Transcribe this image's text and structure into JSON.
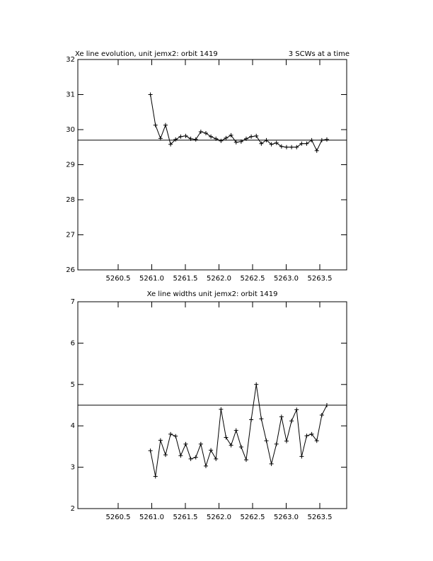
{
  "chart_data": [
    {
      "type": "line",
      "title": "Xe line evolution, unit jemx2: orbit 1419",
      "subtitle": "3 SCWs at a time",
      "x": [
        5260.98,
        5261.055,
        5261.13,
        5261.205,
        5261.28,
        5261.355,
        5261.43,
        5261.505,
        5261.58,
        5261.655,
        5261.73,
        5261.805,
        5261.88,
        5261.955,
        5262.03,
        5262.105,
        5262.18,
        5262.255,
        5262.33,
        5262.405,
        5262.48,
        5262.555,
        5262.63,
        5262.705,
        5262.78,
        5262.855,
        5262.93,
        5263.005,
        5263.08,
        5263.155,
        5263.23,
        5263.305,
        5263.38,
        5263.455,
        5263.53,
        5263.605
      ],
      "series": [
        {
          "color": "#000000",
          "values": [
            31.0,
            30.13,
            29.75,
            30.13,
            29.58,
            29.72,
            29.8,
            29.82,
            29.74,
            29.72,
            29.94,
            29.9,
            29.8,
            29.74,
            29.68,
            29.76,
            29.84,
            29.64,
            29.66,
            29.74,
            29.8,
            29.82,
            29.6,
            29.7,
            29.58,
            29.62,
            29.52,
            29.5,
            29.5,
            29.5,
            29.6,
            29.6,
            29.7,
            29.4,
            29.7,
            29.72
          ]
        }
      ],
      "hline": 29.7,
      "xlim": [
        5259.9,
        5263.9
      ],
      "ylim": [
        26,
        32
      ],
      "xticks": [
        {
          "value": 5260.5,
          "label": "5260.5"
        },
        {
          "value": 5261.0,
          "label": "5261.0"
        },
        {
          "value": 5261.5,
          "label": "5261.5"
        },
        {
          "value": 5262.0,
          "label": "5262.0"
        },
        {
          "value": 5262.5,
          "label": "5262.5"
        },
        {
          "value": 5263.0,
          "label": "5263.0"
        },
        {
          "value": 5263.5,
          "label": "5263.5"
        }
      ],
      "yticks": [
        26,
        27,
        28,
        29,
        30,
        31,
        32
      ]
    },
    {
      "type": "line",
      "title": "Xe line widths unit jemx2: orbit 1419",
      "x": [
        5260.98,
        5261.055,
        5261.13,
        5261.205,
        5261.28,
        5261.355,
        5261.43,
        5261.505,
        5261.58,
        5261.655,
        5261.73,
        5261.805,
        5261.88,
        5261.955,
        5262.03,
        5262.105,
        5262.18,
        5262.255,
        5262.33,
        5262.405,
        5262.48,
        5262.555,
        5262.63,
        5262.705,
        5262.78,
        5262.855,
        5262.93,
        5263.005,
        5263.08,
        5263.155,
        5263.23,
        5263.305,
        5263.38,
        5263.455,
        5263.53,
        5263.605
      ],
      "series": [
        {
          "color": "#000000",
          "values": [
            3.4,
            2.78,
            3.65,
            3.3,
            3.8,
            3.75,
            3.28,
            3.56,
            3.2,
            3.24,
            3.56,
            3.03,
            3.41,
            3.2,
            4.4,
            3.72,
            3.53,
            3.89,
            3.49,
            3.18,
            4.15,
            5.0,
            4.17,
            3.64,
            3.08,
            3.56,
            4.22,
            3.63,
            4.12,
            4.39,
            3.26,
            3.76,
            3.8,
            3.64,
            4.26,
            4.5
          ]
        }
      ],
      "hline": 4.5,
      "xlim": [
        5259.9,
        5263.9
      ],
      "ylim": [
        2,
        7
      ],
      "xticks": [
        {
          "value": 5260.5,
          "label": "5260.5"
        },
        {
          "value": 5261.0,
          "label": "5261.0"
        },
        {
          "value": 5261.5,
          "label": "5261.5"
        },
        {
          "value": 5262.0,
          "label": "5262.0"
        },
        {
          "value": 5262.5,
          "label": "5262.5"
        },
        {
          "value": 5263.0,
          "label": "5263.0"
        },
        {
          "value": 5263.5,
          "label": "5263.5"
        }
      ],
      "yticks": [
        2,
        3,
        4,
        5,
        6,
        7
      ]
    }
  ]
}
